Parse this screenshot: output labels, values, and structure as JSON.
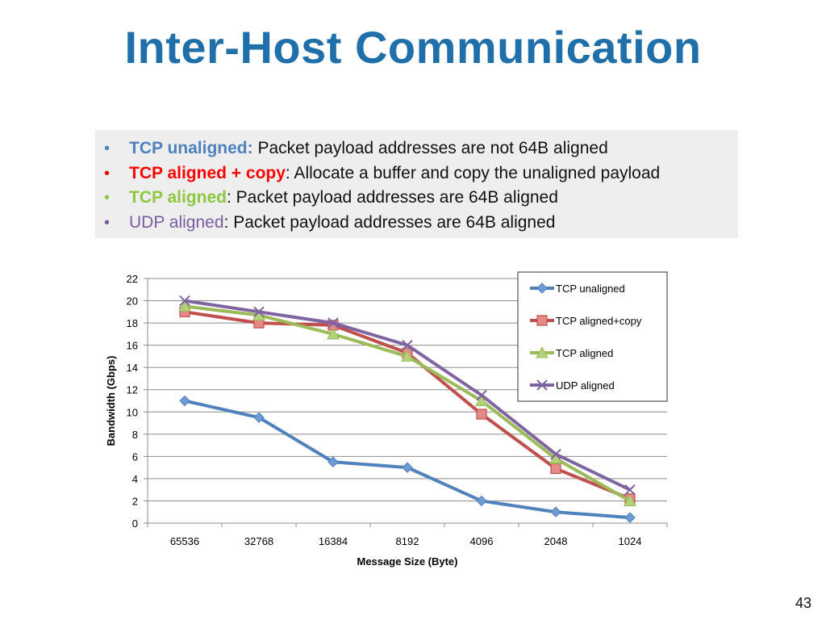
{
  "slide": {
    "title": "Inter-Host Communication",
    "page_number": "43"
  },
  "bullets": [
    {
      "term": "TCP unaligned:",
      "text": " Packet payload addresses are not 64B aligned",
      "color": "#4f81bd",
      "bold": true
    },
    {
      "term": "TCP aligned + copy",
      "text": ": Allocate a buffer and copy the unaligned payload",
      "color": "#ff0000",
      "bold": true
    },
    {
      "term": "TCP aligned",
      "text": ": Packet payload addresses are 64B aligned",
      "color": "#8dc63f",
      "bold": true
    },
    {
      "term": "UDP aligned",
      "text": ": Packet payload addresses are 64B aligned",
      "color": "#7a5c9e",
      "bold": false
    }
  ],
  "chart_data": {
    "type": "line",
    "categories": [
      "65536",
      "32768",
      "16384",
      "8192",
      "4096",
      "2048",
      "1024"
    ],
    "xlabel": "Message Size (Byte)",
    "ylabel": "Bandwidth (Gbps)",
    "ylim": [
      0,
      22
    ],
    "yticks": [
      0,
      2,
      4,
      6,
      8,
      10,
      12,
      14,
      16,
      18,
      20,
      22
    ],
    "grid": true,
    "legend_position": "top-right",
    "series": [
      {
        "name": "TCP unaligned",
        "color": "#4f81bd",
        "marker": "diamond",
        "values": [
          11,
          9.5,
          5.5,
          5,
          2,
          1,
          0.5
        ]
      },
      {
        "name": "TCP aligned+copy",
        "color": "#c0504d",
        "marker": "square",
        "values": [
          19,
          18,
          17.8,
          15.3,
          9.8,
          4.9,
          2.2
        ]
      },
      {
        "name": "TCP aligned",
        "color": "#9bbb59",
        "marker": "triangle",
        "values": [
          19.5,
          18.7,
          17,
          15,
          11,
          5.8,
          2
        ]
      },
      {
        "name": "UDP aligned",
        "color": "#8064a2",
        "marker": "x",
        "values": [
          20,
          19,
          18,
          16,
          11.5,
          6.2,
          3
        ]
      }
    ]
  }
}
